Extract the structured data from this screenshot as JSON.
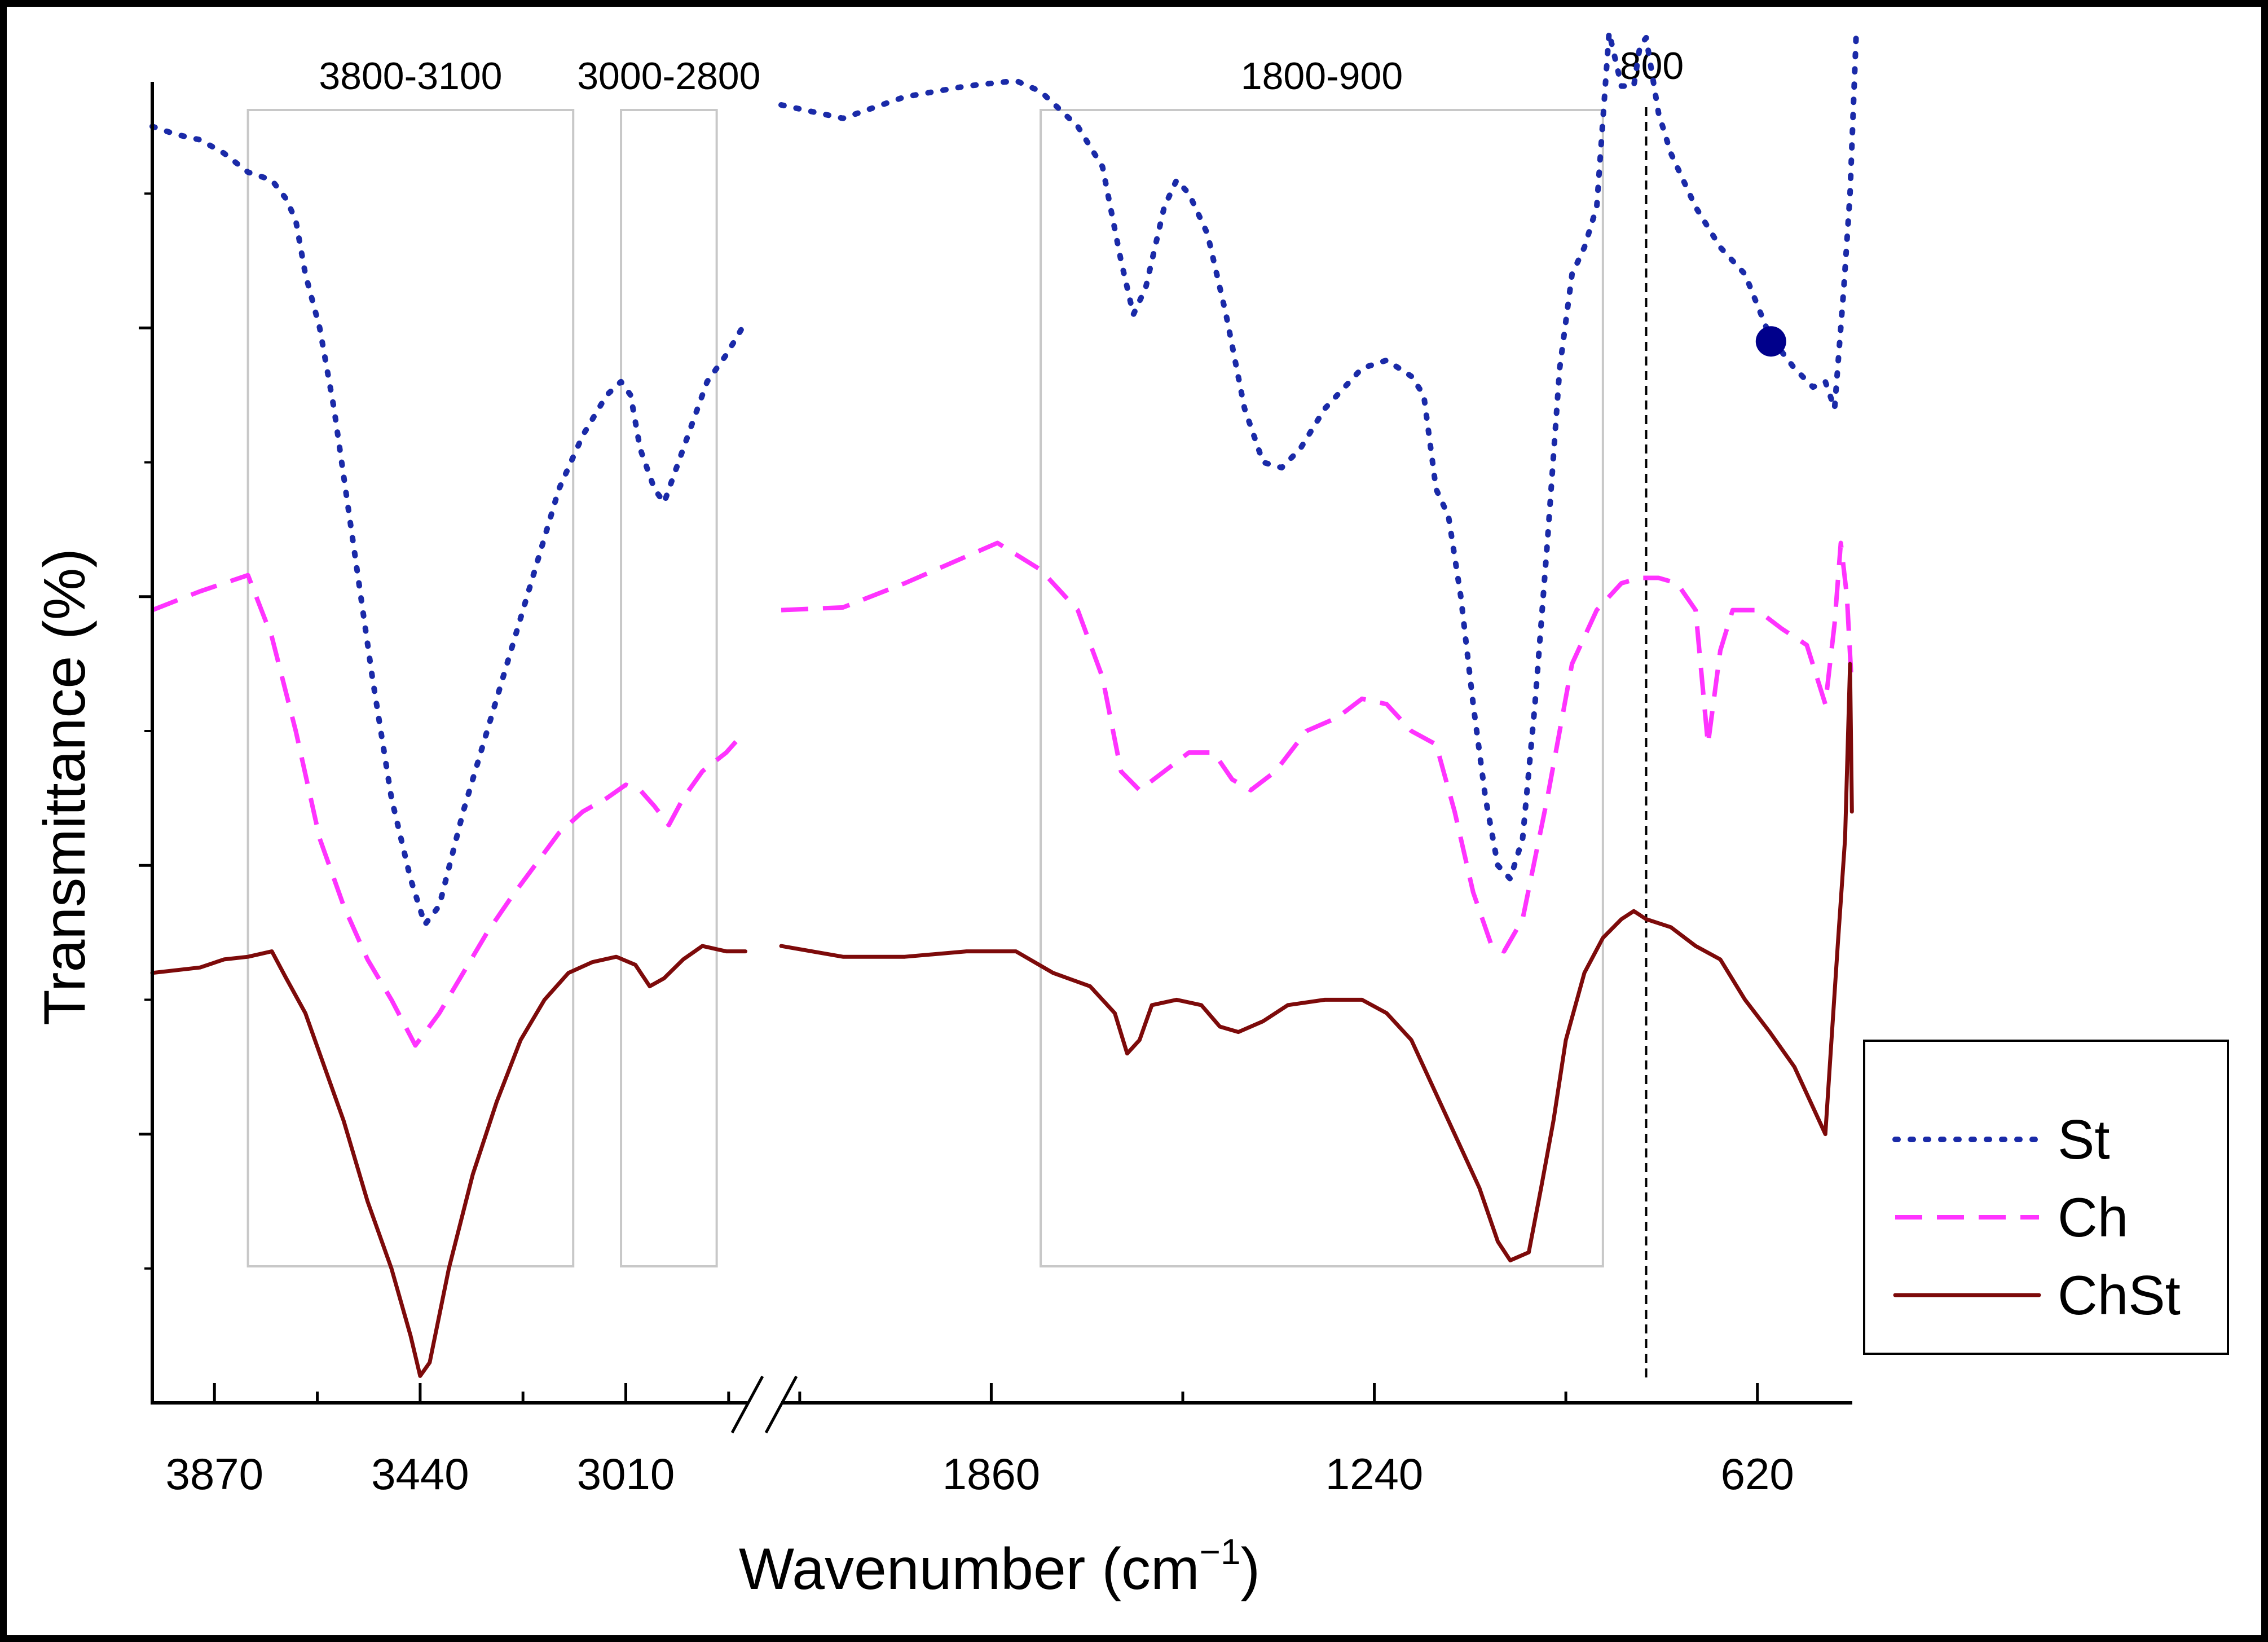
{
  "chart_data": {
    "type": "line",
    "title": "",
    "xlabel": "Wavenumber (cm",
    "xlabel_superscript": "−1",
    "xlabel_close": ")",
    "ylabel": "Transmittance (%)",
    "x_reversed": true,
    "x_segments": [
      {
        "range": [
          4000,
          2750
        ],
        "ticks": [
          3870,
          3440,
          3010
        ],
        "tick_labels": [
          "3870",
          "3440",
          "3010"
        ]
      },
      {
        "range": [
          2200,
          470
        ],
        "ticks": [
          1860,
          1240,
          620
        ],
        "tick_labels": [
          "1860",
          "1240",
          "620"
        ]
      }
    ],
    "axis_break": true,
    "y_ticks": [
      1,
      2,
      3,
      4
    ],
    "y_tick_labels": [],
    "ylim": [
      0,
      5
    ],
    "regions": [
      {
        "label": "3800-3100",
        "x_range": [
          3800,
          3120
        ]
      },
      {
        "label": "3000-2800",
        "x_range": [
          3020,
          2820
        ]
      },
      {
        "label": "1800-900",
        "x_range": [
          1780,
          870
        ]
      }
    ],
    "markers": [
      {
        "label": "800",
        "x": 800,
        "style": "dashed"
      }
    ],
    "legend": {
      "position": "right",
      "entries": [
        {
          "name": "St",
          "style": "dotted",
          "color": "#1a2aa8"
        },
        {
          "name": "Ch",
          "style": "dashed",
          "color": "#ff33ff"
        },
        {
          "name": "ChSt",
          "style": "solid",
          "color": "#7d0a0a"
        }
      ]
    },
    "annotation_point": {
      "series": "St",
      "x": 598,
      "y": 3.95
    },
    "series": [
      {
        "name": "St",
        "style": "dotted",
        "color": "#1a2aa8",
        "points": [
          [
            4000,
            4.75
          ],
          [
            3950,
            4.72
          ],
          [
            3900,
            4.7
          ],
          [
            3850,
            4.65
          ],
          [
            3800,
            4.58
          ],
          [
            3750,
            4.55
          ],
          [
            3720,
            4.48
          ],
          [
            3700,
            4.4
          ],
          [
            3680,
            4.2
          ],
          [
            3650,
            4.0
          ],
          [
            3620,
            3.7
          ],
          [
            3580,
            3.2
          ],
          [
            3540,
            2.7
          ],
          [
            3500,
            2.25
          ],
          [
            3460,
            1.95
          ],
          [
            3430,
            1.78
          ],
          [
            3400,
            1.85
          ],
          [
            3350,
            2.2
          ],
          [
            3300,
            2.5
          ],
          [
            3250,
            2.8
          ],
          [
            3200,
            3.1
          ],
          [
            3150,
            3.4
          ],
          [
            3100,
            3.6
          ],
          [
            3050,
            3.75
          ],
          [
            3020,
            3.8
          ],
          [
            3000,
            3.75
          ],
          [
            2980,
            3.55
          ],
          [
            2950,
            3.4
          ],
          [
            2930,
            3.35
          ],
          [
            2900,
            3.5
          ],
          [
            2870,
            3.65
          ],
          [
            2840,
            3.8
          ],
          [
            2800,
            3.9
          ],
          [
            2760,
            4.02
          ],
          [
            2200,
            4.83
          ],
          [
            2100,
            4.78
          ],
          [
            2000,
            4.86
          ],
          [
            1900,
            4.9
          ],
          [
            1820,
            4.92
          ],
          [
            1780,
            4.88
          ],
          [
            1720,
            4.75
          ],
          [
            1680,
            4.6
          ],
          [
            1650,
            4.25
          ],
          [
            1630,
            4.05
          ],
          [
            1610,
            4.15
          ],
          [
            1580,
            4.45
          ],
          [
            1560,
            4.55
          ],
          [
            1540,
            4.5
          ],
          [
            1510,
            4.35
          ],
          [
            1480,
            4.05
          ],
          [
            1450,
            3.7
          ],
          [
            1420,
            3.5
          ],
          [
            1390,
            3.48
          ],
          [
            1360,
            3.55
          ],
          [
            1320,
            3.7
          ],
          [
            1260,
            3.85
          ],
          [
            1220,
            3.88
          ],
          [
            1180,
            3.82
          ],
          [
            1160,
            3.75
          ],
          [
            1140,
            3.4
          ],
          [
            1120,
            3.3
          ],
          [
            1100,
            3.0
          ],
          [
            1080,
            2.6
          ],
          [
            1060,
            2.25
          ],
          [
            1040,
            2.0
          ],
          [
            1020,
            1.95
          ],
          [
            1000,
            2.1
          ],
          [
            980,
            2.6
          ],
          [
            960,
            3.2
          ],
          [
            940,
            3.85
          ],
          [
            920,
            4.2
          ],
          [
            900,
            4.3
          ],
          [
            880,
            4.45
          ],
          [
            860,
            5.1
          ],
          [
            840,
            4.9
          ],
          [
            820,
            4.9
          ],
          [
            810,
            5.05
          ],
          [
            800,
            5.08
          ],
          [
            780,
            4.8
          ],
          [
            760,
            4.65
          ],
          [
            720,
            4.45
          ],
          [
            680,
            4.3
          ],
          [
            640,
            4.2
          ],
          [
            600,
            3.97
          ],
          [
            560,
            3.85
          ],
          [
            530,
            3.78
          ],
          [
            510,
            3.8
          ],
          [
            495,
            3.7
          ],
          [
            480,
            4.15
          ],
          [
            470,
            4.5
          ],
          [
            460,
            5.1
          ]
        ]
      },
      {
        "name": "Ch",
        "style": "dashed",
        "color": "#ff33ff",
        "points": [
          [
            4000,
            2.95
          ],
          [
            3900,
            3.02
          ],
          [
            3800,
            3.08
          ],
          [
            3750,
            2.85
          ],
          [
            3700,
            2.5
          ],
          [
            3650,
            2.1
          ],
          [
            3600,
            1.85
          ],
          [
            3550,
            1.65
          ],
          [
            3500,
            1.5
          ],
          [
            3450,
            1.33
          ],
          [
            3400,
            1.45
          ],
          [
            3350,
            1.6
          ],
          [
            3300,
            1.75
          ],
          [
            3250,
            1.88
          ],
          [
            3200,
            2.0
          ],
          [
            3150,
            2.12
          ],
          [
            3100,
            2.2
          ],
          [
            3050,
            2.25
          ],
          [
            3010,
            2.3
          ],
          [
            2980,
            2.28
          ],
          [
            2950,
            2.22
          ],
          [
            2920,
            2.15
          ],
          [
            2890,
            2.25
          ],
          [
            2850,
            2.35
          ],
          [
            2800,
            2.42
          ],
          [
            2760,
            2.5
          ],
          [
            2200,
            2.95
          ],
          [
            2100,
            2.96
          ],
          [
            2000,
            3.05
          ],
          [
            1900,
            3.15
          ],
          [
            1850,
            3.2
          ],
          [
            1780,
            3.1
          ],
          [
            1720,
            2.95
          ],
          [
            1680,
            2.7
          ],
          [
            1650,
            2.35
          ],
          [
            1620,
            2.28
          ],
          [
            1580,
            2.35
          ],
          [
            1540,
            2.42
          ],
          [
            1500,
            2.42
          ],
          [
            1470,
            2.32
          ],
          [
            1440,
            2.28
          ],
          [
            1400,
            2.35
          ],
          [
            1350,
            2.5
          ],
          [
            1300,
            2.55
          ],
          [
            1260,
            2.62
          ],
          [
            1220,
            2.6
          ],
          [
            1180,
            2.5
          ],
          [
            1140,
            2.45
          ],
          [
            1110,
            2.2
          ],
          [
            1080,
            1.9
          ],
          [
            1050,
            1.7
          ],
          [
            1030,
            1.68
          ],
          [
            1000,
            1.8
          ],
          [
            960,
            2.25
          ],
          [
            920,
            2.75
          ],
          [
            880,
            2.95
          ],
          [
            840,
            3.05
          ],
          [
            810,
            3.07
          ],
          [
            780,
            3.07
          ],
          [
            750,
            3.05
          ],
          [
            720,
            2.95
          ],
          [
            700,
            2.45
          ],
          [
            680,
            2.8
          ],
          [
            660,
            2.95
          ],
          [
            620,
            2.95
          ],
          [
            580,
            2.88
          ],
          [
            540,
            2.82
          ],
          [
            510,
            2.6
          ],
          [
            495,
            2.9
          ],
          [
            485,
            3.2
          ],
          [
            475,
            3.0
          ],
          [
            468,
            2.7
          ]
        ]
      },
      {
        "name": "ChSt",
        "style": "solid",
        "color": "#7d0a0a",
        "points": [
          [
            4000,
            1.6
          ],
          [
            3900,
            1.62
          ],
          [
            3850,
            1.65
          ],
          [
            3800,
            1.66
          ],
          [
            3750,
            1.68
          ],
          [
            3720,
            1.58
          ],
          [
            3680,
            1.45
          ],
          [
            3650,
            1.3
          ],
          [
            3600,
            1.05
          ],
          [
            3550,
            0.75
          ],
          [
            3500,
            0.5
          ],
          [
            3460,
            0.25
          ],
          [
            3440,
            0.1
          ],
          [
            3420,
            0.15
          ],
          [
            3380,
            0.5
          ],
          [
            3330,
            0.85
          ],
          [
            3280,
            1.12
          ],
          [
            3230,
            1.35
          ],
          [
            3180,
            1.5
          ],
          [
            3130,
            1.6
          ],
          [
            3080,
            1.64
          ],
          [
            3030,
            1.66
          ],
          [
            2990,
            1.63
          ],
          [
            2960,
            1.55
          ],
          [
            2930,
            1.58
          ],
          [
            2890,
            1.65
          ],
          [
            2850,
            1.7
          ],
          [
            2800,
            1.68
          ],
          [
            2760,
            1.68
          ],
          [
            2200,
            1.7
          ],
          [
            2100,
            1.66
          ],
          [
            2000,
            1.66
          ],
          [
            1900,
            1.68
          ],
          [
            1820,
            1.68
          ],
          [
            1760,
            1.6
          ],
          [
            1700,
            1.55
          ],
          [
            1660,
            1.45
          ],
          [
            1640,
            1.3
          ],
          [
            1620,
            1.35
          ],
          [
            1600,
            1.48
          ],
          [
            1560,
            1.5
          ],
          [
            1520,
            1.48
          ],
          [
            1490,
            1.4
          ],
          [
            1460,
            1.38
          ],
          [
            1420,
            1.42
          ],
          [
            1380,
            1.48
          ],
          [
            1320,
            1.5
          ],
          [
            1260,
            1.5
          ],
          [
            1220,
            1.45
          ],
          [
            1180,
            1.35
          ],
          [
            1150,
            1.2
          ],
          [
            1110,
            1.0
          ],
          [
            1070,
            0.8
          ],
          [
            1040,
            0.6
          ],
          [
            1020,
            0.53
          ],
          [
            990,
            0.56
          ],
          [
            970,
            0.8
          ],
          [
            950,
            1.05
          ],
          [
            930,
            1.35
          ],
          [
            900,
            1.6
          ],
          [
            870,
            1.73
          ],
          [
            840,
            1.8
          ],
          [
            820,
            1.83
          ],
          [
            800,
            1.8
          ],
          [
            760,
            1.77
          ],
          [
            720,
            1.7
          ],
          [
            680,
            1.65
          ],
          [
            640,
            1.5
          ],
          [
            600,
            1.38
          ],
          [
            560,
            1.25
          ],
          [
            530,
            1.1
          ],
          [
            510,
            1.0
          ],
          [
            500,
            1.35
          ],
          [
            490,
            1.7
          ],
          [
            478,
            2.1
          ],
          [
            470,
            2.75
          ],
          [
            467,
            2.2
          ]
        ]
      }
    ]
  }
}
